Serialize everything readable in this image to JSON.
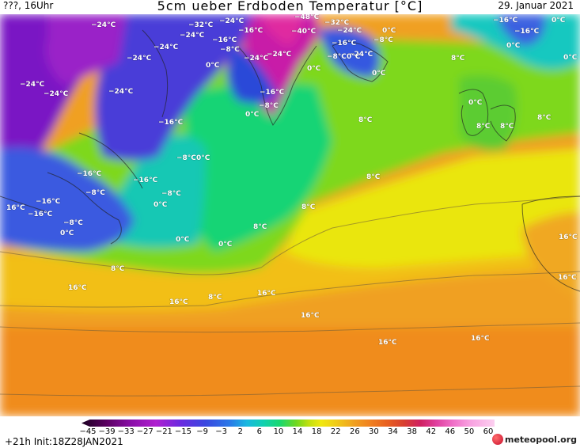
{
  "header": {
    "left": "???, 16Uhr",
    "title": "5cm ueber Erdboden Temperatur [°C]",
    "date": "29. Januar 2021"
  },
  "map_labels": [
    {
      "text": "−24°C"
    },
    {
      "text": "−32°C"
    },
    {
      "text": "−24°C"
    },
    {
      "text": "−16°C"
    },
    {
      "text": "−48°C"
    },
    {
      "text": "−32°C"
    },
    {
      "text": "−24°C"
    },
    {
      "text": "−16°C"
    },
    {
      "text": "0°C"
    },
    {
      "text": "−16°C"
    },
    {
      "text": "0°C"
    },
    {
      "text": "0°C"
    },
    {
      "text": "−24°C"
    },
    {
      "text": "−24°C"
    },
    {
      "text": "−24°C"
    },
    {
      "text": "−8°C"
    },
    {
      "text": "−16°C"
    },
    {
      "text": "−24°C"
    },
    {
      "text": "−24°C"
    },
    {
      "text": "−40°C"
    },
    {
      "text": "−24°C"
    },
    {
      "text": "−16°C"
    },
    {
      "text": "−8°C"
    },
    {
      "text": "−8°C"
    },
    {
      "text": "0°C"
    },
    {
      "text": "0°C"
    },
    {
      "text": "0°C"
    },
    {
      "text": "0°C"
    },
    {
      "text": "8°C"
    },
    {
      "text": "0°C"
    },
    {
      "text": "−24°C"
    },
    {
      "text": "−24°C"
    },
    {
      "text": "−24°C"
    },
    {
      "text": "−16°C"
    },
    {
      "text": "−8°C"
    },
    {
      "text": "0°C"
    },
    {
      "text": "0°C"
    },
    {
      "text": "8°C"
    },
    {
      "text": "8°C"
    },
    {
      "text": "8°C"
    },
    {
      "text": "8°C"
    },
    {
      "text": "−16°C"
    },
    {
      "text": "−8°C"
    },
    {
      "text": "0°C"
    },
    {
      "text": "8°C"
    },
    {
      "text": "−16°C"
    },
    {
      "text": "−16°C"
    },
    {
      "text": "−8°C"
    },
    {
      "text": "−8°C"
    },
    {
      "text": "−16°C"
    },
    {
      "text": "−16°C"
    },
    {
      "text": "0°C"
    },
    {
      "text": "8°C"
    },
    {
      "text": "−8°C"
    },
    {
      "text": "0°C"
    },
    {
      "text": "0°C"
    },
    {
      "text": "0°C"
    },
    {
      "text": "8°C"
    },
    {
      "text": "16°C"
    },
    {
      "text": "8°C"
    },
    {
      "text": "16°C"
    },
    {
      "text": "16°C"
    },
    {
      "text": "8°C"
    },
    {
      "text": "16°C"
    },
    {
      "text": "16°C"
    },
    {
      "text": "16°C"
    },
    {
      "text": "16°C"
    },
    {
      "text": "16°C"
    },
    {
      "text": "16°C"
    }
  ],
  "colorbar": {
    "ticks": [
      "−45",
      "−39",
      "−33",
      "−27",
      "−21",
      "−15",
      "−9",
      "−3",
      "2",
      "6",
      "10",
      "14",
      "18",
      "22",
      "26",
      "30",
      "34",
      "38",
      "42",
      "46",
      "50",
      "60"
    ]
  },
  "footer": {
    "init": "+21h  Init:18Z28JAN2021",
    "brand": "meteopool.org"
  }
}
